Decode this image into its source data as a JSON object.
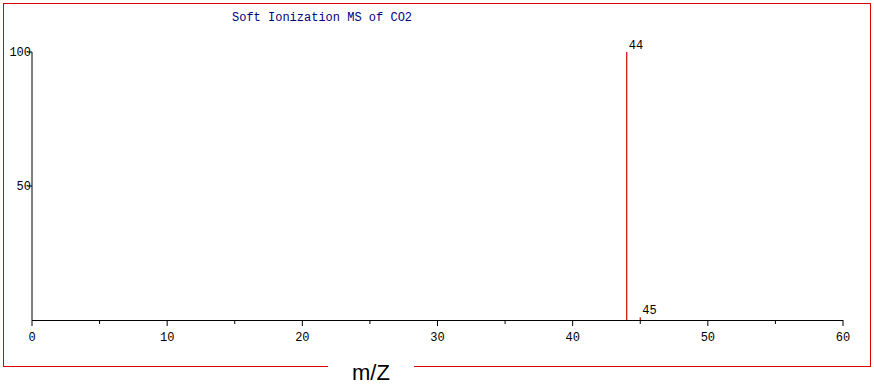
{
  "chart_data": {
    "type": "stem",
    "title": "Soft Ionization MS of CO2",
    "x_label": "m/Z",
    "x": [
      44,
      45
    ],
    "values": [
      100,
      1
    ],
    "color": "#dd0000",
    "xlim": [
      0,
      60
    ],
    "xticks": [
      0,
      10,
      20,
      30,
      40,
      50,
      60
    ],
    "ylim": [
      0,
      100
    ],
    "yticks": [
      50,
      100
    ],
    "grid": false
  }
}
